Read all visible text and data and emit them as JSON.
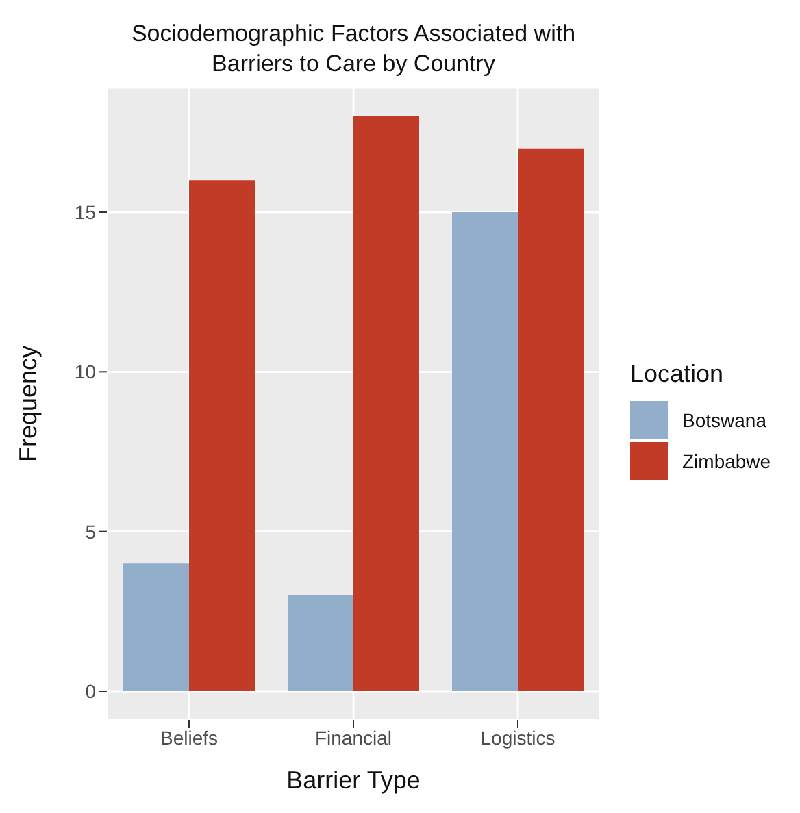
{
  "chart_data": {
    "type": "bar",
    "title": "Sociodemographic Factors Associated with Barriers to Care by Country",
    "xlabel": "Barrier Type",
    "ylabel": "Frequency",
    "legend_title": "Location",
    "categories": [
      "Beliefs",
      "Financial",
      "Logistics"
    ],
    "series": [
      {
        "name": "Botswana",
        "color": "#92aecb",
        "values": [
          4,
          3,
          15
        ]
      },
      {
        "name": "Zimbabwe",
        "color": "#c23b26",
        "values": [
          16,
          18,
          17
        ]
      }
    ],
    "ylim": [
      -0.9,
      18.9
    ],
    "yticks": [
      0,
      5,
      10,
      15
    ],
    "grid": true,
    "legend": "right"
  }
}
